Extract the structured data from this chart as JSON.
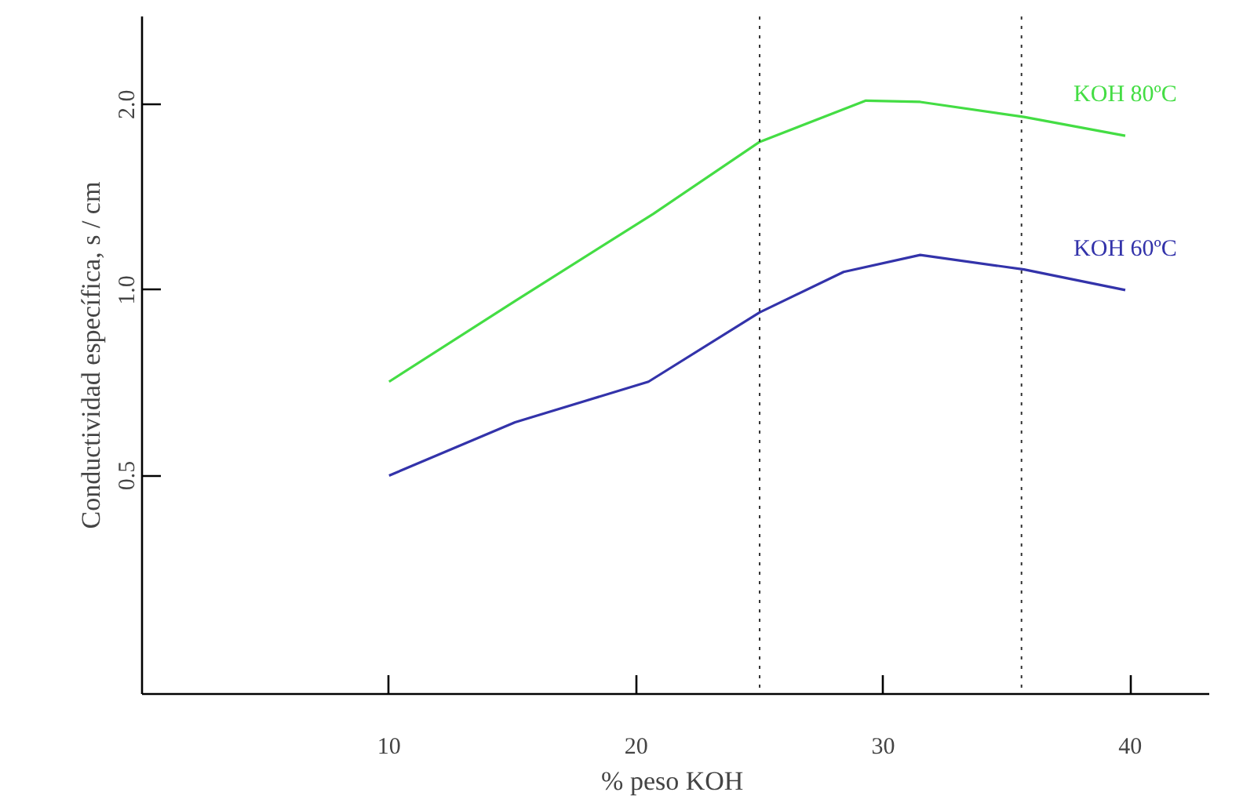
{
  "chart_data": {
    "type": "line",
    "xlabel": "%  peso KOH",
    "ylabel": "Conductividad específica, s / cm",
    "log": "y",
    "xlim": [
      0,
      43.2
    ],
    "xticks": [
      10,
      20,
      30,
      40
    ],
    "ylim": [
      0.221,
      2.78
    ],
    "yticks": [
      0.5,
      {
        "value": 1,
        "label": "1.0"
      },
      {
        "value": 2,
        "label": "2.0"
      }
    ],
    "grid": false,
    "marker": "none",
    "line_style": "solid",
    "ref_lines": [
      {
        "axis": "x",
        "value": 25,
        "line_style": "dotted"
      },
      {
        "axis": "x",
        "value": 35.6,
        "line_style": "dotted"
      }
    ],
    "series": [
      {
        "name": "KOH 80ºC",
        "color": "#44dd44",
        "x": [
          10,
          15.1,
          20.7,
          25,
          29.3,
          31.5,
          35.7,
          39.8
        ],
        "values": [
          0.71,
          0.96,
          1.33,
          1.74,
          2.03,
          2.02,
          1.91,
          1.78
        ]
      },
      {
        "name": "KOH 60ºC",
        "color": "#3333aa",
        "x": [
          10,
          15.1,
          20.5,
          25,
          28.4,
          31.5,
          35.7,
          39.8
        ],
        "values": [
          0.5,
          0.61,
          0.71,
          0.92,
          1.07,
          1.14,
          1.08,
          1.0
        ]
      }
    ]
  }
}
